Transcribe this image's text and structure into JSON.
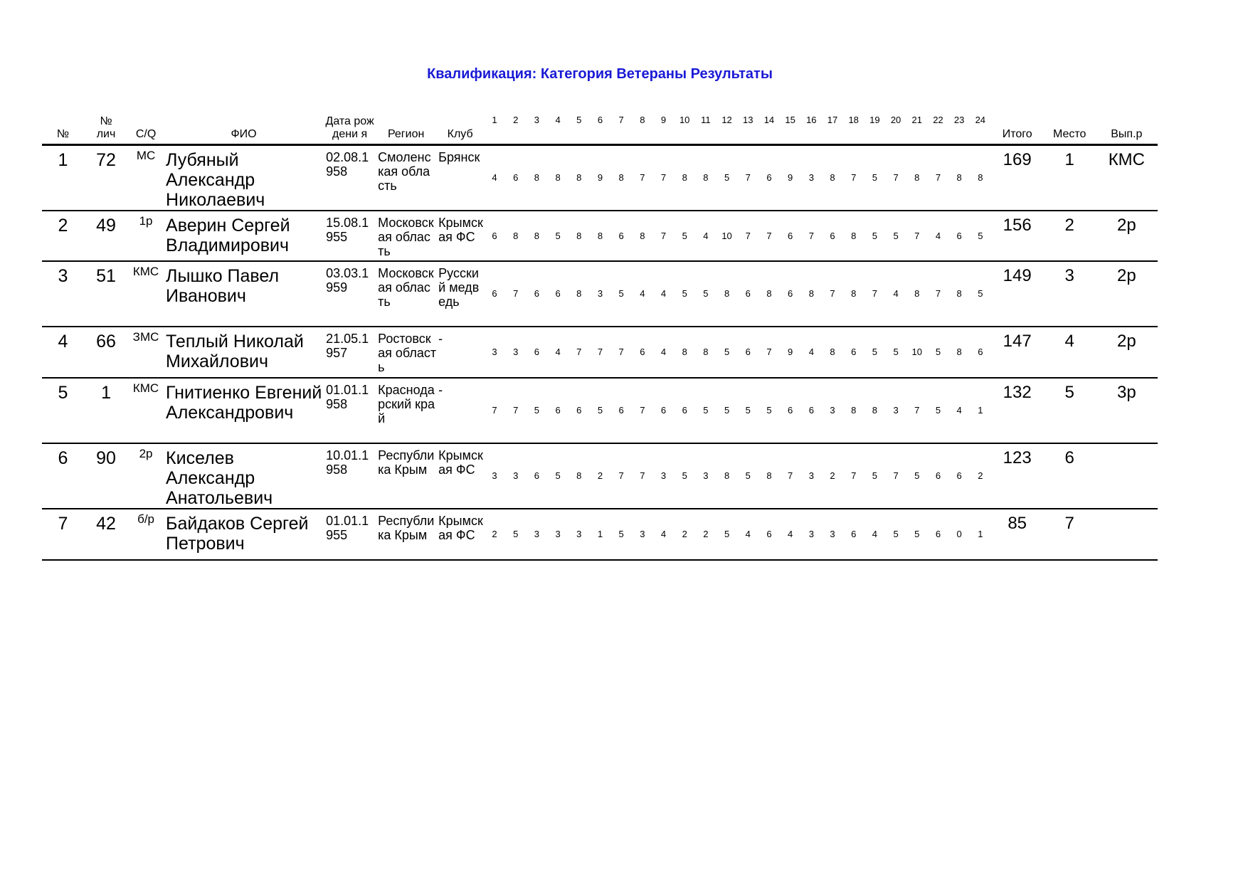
{
  "title": "Квалификация: Категория Ветераны Результаты",
  "headers": {
    "num": "№",
    "bib": "№ лич",
    "cq": "C/Q",
    "name": "ФИО",
    "dob": "Дата рождени я",
    "region": "Регион",
    "club": "Клуб",
    "total": "Итого",
    "place": "Место",
    "rank": "Вып.р",
    "rounds": [
      "1",
      "2",
      "3",
      "4",
      "5",
      "6",
      "7",
      "8",
      "9",
      "10",
      "11",
      "12",
      "13",
      "14",
      "15",
      "16",
      "17",
      "18",
      "19",
      "20",
      "21",
      "22",
      "23",
      "24"
    ]
  },
  "rows": [
    {
      "num": "1",
      "bib": "72",
      "cq": "МС",
      "name": "Лубяный Александр Николаевич",
      "dob": "02.08.1958",
      "region": "Смоленская область",
      "club": "Брянск",
      "scores": [
        4,
        6,
        8,
        8,
        8,
        9,
        8,
        7,
        7,
        8,
        8,
        5,
        7,
        6,
        9,
        3,
        8,
        7,
        5,
        7,
        8,
        7,
        8,
        8
      ],
      "total": "169",
      "place": "1",
      "rank": "КМС"
    },
    {
      "num": "2",
      "bib": "49",
      "cq": "1р",
      "name": "Аверин Сергей Владимирович",
      "dob": "15.08.1955",
      "region": "Московская область",
      "club": "Крымская ФС",
      "scores": [
        6,
        8,
        8,
        5,
        8,
        8,
        6,
        8,
        7,
        5,
        4,
        10,
        7,
        7,
        6,
        7,
        6,
        8,
        5,
        5,
        7,
        4,
        6,
        5
      ],
      "total": "156",
      "place": "2",
      "rank": "2р"
    },
    {
      "num": "3",
      "bib": "51",
      "cq": "КМС",
      "name": "Лышко Павел Иванович",
      "dob": "03.03.1959",
      "region": "Московская область",
      "club": "Русский медведь",
      "scores": [
        6,
        7,
        6,
        6,
        8,
        3,
        5,
        4,
        4,
        5,
        5,
        8,
        6,
        8,
        6,
        8,
        7,
        8,
        7,
        4,
        8,
        7,
        8,
        5
      ],
      "total": "149",
      "place": "3",
      "rank": "2р"
    },
    {
      "num": "4",
      "bib": "66",
      "cq": "ЗМС",
      "name": "Теплый Николай Михайлович",
      "dob": "21.05.1957",
      "region": "Ростовская область",
      "club": "-",
      "scores": [
        3,
        3,
        6,
        4,
        7,
        7,
        7,
        6,
        4,
        8,
        8,
        5,
        6,
        7,
        9,
        4,
        8,
        6,
        5,
        5,
        10,
        5,
        8,
        6
      ],
      "total": "147",
      "place": "4",
      "rank": "2р"
    },
    {
      "num": "5",
      "bib": "1",
      "cq": "КМС",
      "name": "Гнитиенко Евгений Александрович",
      "dob": "01.01.1958",
      "region": "Краснодарский край",
      "club": "-",
      "scores": [
        7,
        7,
        5,
        6,
        6,
        5,
        6,
        7,
        6,
        6,
        5,
        5,
        5,
        5,
        6,
        6,
        3,
        8,
        8,
        3,
        7,
        5,
        4,
        1
      ],
      "total": "132",
      "place": "5",
      "rank": "3р"
    },
    {
      "num": "6",
      "bib": "90",
      "cq": "2р",
      "name": "Киселев Александр Анатольевич",
      "dob": "10.01.1958",
      "region": "Республика Крым",
      "club": "Крымская ФС",
      "scores": [
        3,
        3,
        6,
        5,
        8,
        2,
        7,
        7,
        3,
        5,
        3,
        8,
        5,
        8,
        7,
        3,
        2,
        7,
        5,
        7,
        5,
        6,
        6,
        2
      ],
      "total": "123",
      "place": "6",
      "rank": ""
    },
    {
      "num": "7",
      "bib": "42",
      "cq": "б/р",
      "name": "Байдаков Сергей Петрович",
      "dob": "01.01.1955",
      "region": "Республика Крым",
      "club": "Крымская ФС",
      "scores": [
        2,
        5,
        3,
        3,
        3,
        1,
        5,
        3,
        4,
        2,
        2,
        5,
        4,
        6,
        4,
        3,
        3,
        6,
        4,
        5,
        5,
        6,
        0,
        1
      ],
      "total": "85",
      "place": "7",
      "rank": ""
    }
  ]
}
